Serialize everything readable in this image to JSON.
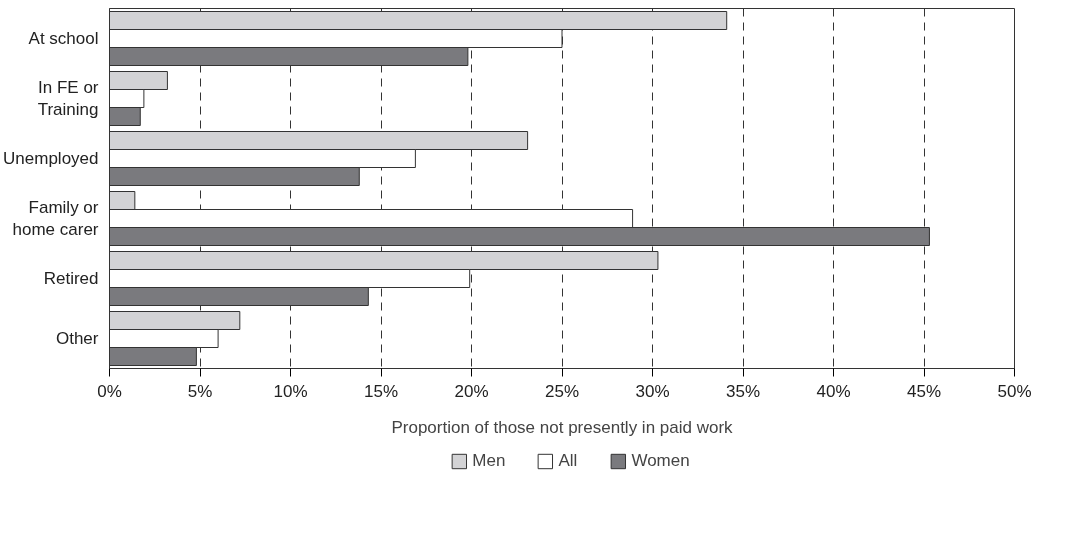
{
  "chart_data": {
    "type": "bar",
    "orientation": "horizontal",
    "categories": [
      "At school",
      "In FE or\nTraining",
      "Unemployed",
      "Family or\nhome carer",
      "Retired",
      "Other"
    ],
    "series": [
      {
        "name": "Men",
        "color": "#d3d3d5",
        "values": [
          34.1,
          3.2,
          23.1,
          1.4,
          30.3,
          7.2
        ]
      },
      {
        "name": "All",
        "color": "#ffffff",
        "values": [
          25.0,
          1.9,
          16.9,
          28.9,
          19.9,
          6.0
        ]
      },
      {
        "name": "Women",
        "color": "#7a7a7e",
        "values": [
          19.8,
          1.7,
          13.8,
          45.3,
          14.3,
          4.8
        ]
      }
    ],
    "xlabel": "Proportion of those not presently in paid work",
    "xlim": [
      0,
      50
    ],
    "xticks": [
      {
        "value": 0,
        "label": "0%"
      },
      {
        "value": 5,
        "label": "5%"
      },
      {
        "value": 10,
        "label": "10%"
      },
      {
        "value": 15,
        "label": "15%"
      },
      {
        "value": 20,
        "label": "20%"
      },
      {
        "value": 25,
        "label": "25%"
      },
      {
        "value": 30,
        "label": "30%"
      },
      {
        "value": 35,
        "label": "35%"
      },
      {
        "value": 40,
        "label": "40%"
      },
      {
        "value": 45,
        "label": "45%"
      },
      {
        "value": 50,
        "label": "50%"
      }
    ],
    "grid": "x",
    "legend": "bottom"
  }
}
